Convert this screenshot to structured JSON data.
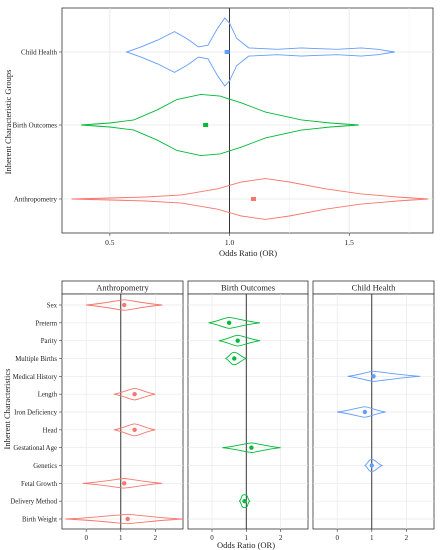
{
  "chart_data": [
    {
      "type": "violin",
      "xlabel": "Odds Ratio (OR)",
      "ylabel": "Inherent Characteristic Groups",
      "xlim": [
        0.3,
        1.85
      ],
      "xticks": [
        0.5,
        1.0,
        1.5
      ],
      "xtick_labels": [
        "0.5",
        "1.0",
        "1.5"
      ],
      "reference_line": 1.0,
      "grid": true,
      "categories": [
        "Child Health",
        "Birth Outcomes",
        "Anthropometry"
      ],
      "series": [
        {
          "category": "Child Health",
          "color": "#619CFF",
          "point": 0.99,
          "min": 0.57,
          "max": 1.69,
          "profile": [
            [
              0.57,
              0.0
            ],
            [
              0.63,
              0.15
            ],
            [
              0.7,
              0.35
            ],
            [
              0.77,
              0.6
            ],
            [
              0.82,
              0.4
            ],
            [
              0.87,
              0.15
            ],
            [
              0.91,
              0.2
            ],
            [
              0.95,
              0.7
            ],
            [
              0.98,
              1.0
            ],
            [
              1.0,
              0.85
            ],
            [
              1.03,
              0.4
            ],
            [
              1.08,
              0.12
            ],
            [
              1.2,
              0.08
            ],
            [
              1.3,
              0.12
            ],
            [
              1.36,
              0.1
            ],
            [
              1.45,
              0.08
            ],
            [
              1.55,
              0.12
            ],
            [
              1.62,
              0.08
            ],
            [
              1.69,
              0.0
            ]
          ]
        },
        {
          "category": "Birth Outcomes",
          "color": "#00BA38",
          "point": 0.9,
          "min": 0.38,
          "max": 1.54,
          "profile": [
            [
              0.38,
              0.0
            ],
            [
              0.5,
              0.06
            ],
            [
              0.6,
              0.15
            ],
            [
              0.7,
              0.45
            ],
            [
              0.78,
              0.75
            ],
            [
              0.88,
              0.9
            ],
            [
              0.96,
              0.85
            ],
            [
              1.05,
              0.65
            ],
            [
              1.15,
              0.38
            ],
            [
              1.3,
              0.15
            ],
            [
              1.42,
              0.06
            ],
            [
              1.54,
              0.0
            ]
          ]
        },
        {
          "category": "Anthropometry",
          "color": "#F8766D",
          "point": 1.1,
          "min": 0.34,
          "max": 1.83,
          "profile": [
            [
              0.34,
              0.0
            ],
            [
              0.5,
              0.03
            ],
            [
              0.65,
              0.06
            ],
            [
              0.8,
              0.12
            ],
            [
              0.95,
              0.3
            ],
            [
              1.05,
              0.5
            ],
            [
              1.15,
              0.6
            ],
            [
              1.25,
              0.5
            ],
            [
              1.4,
              0.3
            ],
            [
              1.55,
              0.15
            ],
            [
              1.7,
              0.06
            ],
            [
              1.83,
              0.0
            ]
          ]
        }
      ]
    },
    {
      "type": "violin-facet",
      "xlabel": "Odds Ratio (OR)",
      "ylabel": "Inherent Characteristics",
      "reference_line": 1,
      "grid": true,
      "xlim": [
        -0.7,
        2.8
      ],
      "xticks": [
        0,
        1,
        2
      ],
      "xtick_labels": [
        "0",
        "1",
        "2"
      ],
      "rows": [
        "Sex",
        "Preterm",
        "Parity",
        "Multiple Births",
        "Medical History",
        "Length",
        "Iron Deficiency",
        "Head",
        "Gestational Age",
        "Genetics",
        "Fetal Growth",
        "Delivery Method",
        "Birth Weight"
      ],
      "panels": [
        {
          "title": "Anthropometry",
          "color": "#F8766D",
          "items": [
            {
              "row": "Sex",
              "point": 1.1,
              "min": 0.0,
              "max": 2.2,
              "width": 0.5
            },
            {
              "row": "Length",
              "point": 1.4,
              "min": 0.8,
              "max": 2.0,
              "width": 0.7
            },
            {
              "row": "Head",
              "point": 1.4,
              "min": 0.8,
              "max": 2.0,
              "width": 0.8
            },
            {
              "row": "Fetal Growth",
              "point": 1.1,
              "min": -0.1,
              "max": 2.2,
              "width": 0.35
            },
            {
              "row": "Birth Weight",
              "point": 1.2,
              "min": -0.6,
              "max": 2.8,
              "width": 0.3
            }
          ]
        },
        {
          "title": "Birth Outcomes",
          "color": "#00BA38",
          "items": [
            {
              "row": "Preterm",
              "point": 0.5,
              "min": -0.1,
              "max": 1.4,
              "width": 0.6
            },
            {
              "row": "Parity",
              "point": 0.75,
              "min": 0.2,
              "max": 1.4,
              "width": 0.55
            },
            {
              "row": "Multiple Births",
              "point": 0.65,
              "min": 0.4,
              "max": 1.0,
              "width": 0.9
            },
            {
              "row": "Gestational Age",
              "point": 1.15,
              "min": 0.3,
              "max": 2.0,
              "width": 0.35
            },
            {
              "row": "Delivery Method",
              "point": 0.95,
              "min": 0.8,
              "max": 1.1,
              "width": 1.0
            }
          ]
        },
        {
          "title": "Child Health",
          "color": "#619CFF",
          "items": [
            {
              "row": "Medical History",
              "point": 1.05,
              "min": 0.3,
              "max": 2.4,
              "width": 0.45
            },
            {
              "row": "Iron Deficiency",
              "point": 0.8,
              "min": 0.0,
              "max": 1.4,
              "width": 0.5
            },
            {
              "row": "Genetics",
              "point": 1.0,
              "min": 0.8,
              "max": 1.3,
              "width": 0.8
            }
          ]
        }
      ]
    }
  ]
}
